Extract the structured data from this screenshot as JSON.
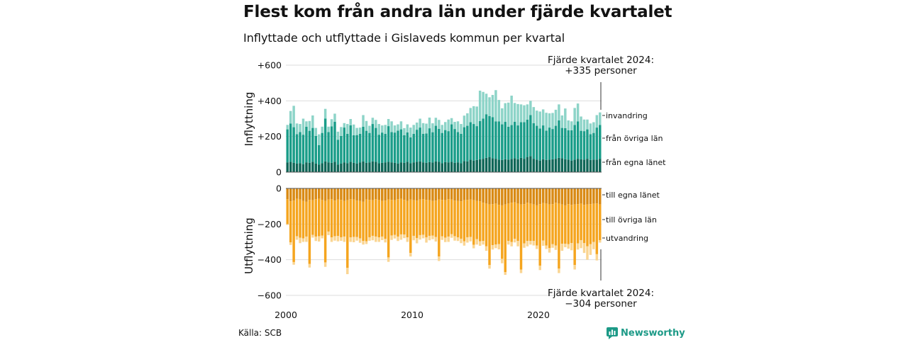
{
  "title": "Flest kom från andra län under fjärde kvartalet",
  "subtitle": "Inflyttade och utflyttade i Gislaveds kommun per kvartal",
  "source": "Källa: SCB",
  "brand": "Newsworthy",
  "colors": {
    "in_own": "#0e6657",
    "in_other": "#1a9d89",
    "in_immigration": "#8dd4c8",
    "out_own": "#d98a14",
    "out_other": "#f5a51f",
    "out_emigration": "#fad592",
    "grid": "#dddddd",
    "brand": "#1d9a87"
  },
  "chart_data": {
    "type": "bar",
    "stacked": true,
    "x_start": "2000 Q1",
    "x_end": "2024 Q4",
    "x_ticks": [
      "2000",
      "2010",
      "2020"
    ],
    "panels": [
      {
        "id": "inflyttning",
        "ylabel": "Inflyttning",
        "ylim": [
          0,
          600
        ],
        "yticks": [
          0,
          200,
          400,
          600
        ],
        "ytick_labels": [
          "0",
          "+200",
          "+400",
          "+600"
        ],
        "annotation": [
          "Fjärde kvartalet 2024:",
          "+335 personer"
        ],
        "series": [
          {
            "name": "från egna länet",
            "values": [
              55,
              58,
              52,
              48,
              50,
              45,
              55,
              52,
              58,
              48,
              42,
              50,
              60,
              55,
              52,
              58,
              42,
              48,
              55,
              50,
              58,
              52,
              48,
              55,
              60,
              52,
              55,
              60,
              58,
              50,
              52,
              55,
              58,
              55,
              52,
              48,
              55,
              52,
              58,
              50,
              55,
              58,
              60,
              55,
              52,
              56,
              54,
              60,
              58,
              50,
              56,
              55,
              58,
              52,
              55,
              50,
              62,
              60,
              70,
              65,
              68,
              72,
              75,
              80,
              85,
              78,
              75,
              70,
              68,
              72,
              70,
              74,
              78,
              72,
              80,
              75,
              85,
              90,
              75,
              70,
              65,
              72,
              68,
              70,
              72,
              75,
              80,
              78,
              72,
              70,
              65,
              70,
              75,
              72,
              70,
              75,
              68,
              70,
              70,
              75
            ]
          },
          {
            "name": "från övriga län",
            "values": [
              185,
              215,
              200,
              165,
              175,
              165,
              200,
              180,
              190,
              155,
              110,
              170,
              240,
              170,
              205,
              225,
              140,
              155,
              195,
              165,
              205,
              155,
              160,
              160,
              195,
              180,
              165,
              210,
              190,
              160,
              170,
              160,
              200,
              170,
              170,
              185,
              185,
              155,
              165,
              145,
              160,
              180,
              190,
              160,
              165,
              190,
              170,
              200,
              185,
              170,
              180,
              175,
              210,
              190,
              170,
              165,
              190,
              200,
              210,
              205,
              190,
              215,
              225,
              245,
              230,
              230,
              210,
              215,
              200,
              210,
              185,
              190,
              205,
              190,
              200,
              205,
              210,
              230,
              200,
              190,
              180,
              190,
              165,
              180,
              170,
              185,
              210,
              170,
              175,
              165,
              170,
              195,
              210,
              160,
              160,
              165,
              145,
              150,
              180,
              190
            ]
          },
          {
            "name": "invandring",
            "values": [
              25,
              70,
              120,
              60,
              45,
              90,
              30,
              55,
              70,
              45,
              60,
              35,
              55,
              30,
              40,
              45,
              45,
              50,
              25,
              55,
              35,
              60,
              40,
              35,
              65,
              55,
              40,
              35,
              45,
              60,
              40,
              50,
              40,
              60,
              40,
              35,
              45,
              40,
              45,
              55,
              50,
              40,
              50,
              60,
              55,
              60,
              50,
              45,
              50,
              45,
              45,
              65,
              35,
              40,
              60,
              55,
              65,
              70,
              80,
              100,
              110,
              170,
              150,
              115,
              105,
              125,
              175,
              120,
              90,
              105,
              135,
              165,
              105,
              120,
              100,
              95,
              85,
              80,
              90,
              85,
              95,
              90,
              100,
              80,
              90,
              90,
              90,
              70,
              110,
              55,
              50,
              95,
              100,
              80,
              65,
              55,
              60,
              60,
              70,
              70
            ]
          }
        ],
        "series_labels": [
          "invandring",
          "från övriga län",
          "från egna länet"
        ]
      },
      {
        "id": "utflyttning",
        "ylabel": "Utflyttning",
        "ylim": [
          -600,
          0
        ],
        "yticks": [
          0,
          -200,
          -400,
          -600
        ],
        "ytick_labels": [
          "0",
          "−200",
          "−400",
          "−600"
        ],
        "annotation": [
          "Fjärde kvartalet 2024:",
          "−304 personer"
        ],
        "series": [
          {
            "name": "till egna länet",
            "values": [
              -60,
              -72,
              -68,
              -58,
              -62,
              -70,
              -75,
              -64,
              -66,
              -60,
              -58,
              -65,
              -70,
              -62,
              -60,
              -68,
              -62,
              -64,
              -70,
              -66,
              -60,
              -62,
              -68,
              -70,
              -75,
              -62,
              -64,
              -66,
              -60,
              -65,
              -70,
              -68,
              -62,
              -64,
              -66,
              -60,
              -58,
              -64,
              -70,
              -62,
              -66,
              -68,
              -62,
              -60,
              -64,
              -66,
              -70,
              -68,
              -62,
              -64,
              -66,
              -60,
              -62,
              -68,
              -70,
              -72,
              -66,
              -64,
              -62,
              -66,
              -70,
              -72,
              -80,
              -85,
              -90,
              -88,
              -85,
              -92,
              -95,
              -90,
              -85,
              -80,
              -78,
              -85,
              -90,
              -88,
              -80,
              -85,
              -90,
              -95,
              -88,
              -82,
              -85,
              -90,
              -88,
              -80,
              -85,
              -90,
              -95,
              -88,
              -92,
              -90,
              -88,
              -85,
              -92,
              -90,
              -88,
              -86,
              -84,
              -90
            ]
          },
          {
            "name": "till övriga län",
            "values": [
              -140,
              -230,
              -345,
              -210,
              -215,
              -210,
              -195,
              -360,
              -195,
              -210,
              -210,
              -200,
              -345,
              -180,
              -215,
              -200,
              -205,
              -210,
              -200,
              -380,
              -215,
              -210,
              -205,
              -210,
              -220,
              -235,
              -210,
              -200,
              -210,
              -210,
              -200,
              -215,
              -325,
              -200,
              -195,
              -210,
              -200,
              -195,
              -205,
              -300,
              -200,
              -210,
              -200,
              -200,
              -210,
              -200,
              -195,
              -205,
              -320,
              -205,
              -210,
              -210,
              -195,
              -200,
              -205,
              -210,
              -230,
              -210,
              -210,
              -250,
              -215,
              -225,
              -215,
              -240,
              -340,
              -230,
              -230,
              -220,
              -300,
              -380,
              -210,
              -220,
              -205,
              -210,
              -365,
              -220,
              -215,
              -210,
              -205,
              -225,
              -345,
              -210,
              -235,
              -245,
              -225,
              -240,
              -365,
              -220,
              -215,
              -225,
              -215,
              -340,
              -220,
              -205,
              -215,
              -235,
              -225,
              -215,
              -285,
              -200
            ]
          },
          {
            "name": "utvandring",
            "values": [
              -5,
              -15,
              -15,
              -20,
              -30,
              -20,
              -30,
              -20,
              -15,
              -25,
              -30,
              -15,
              -25,
              -20,
              -25,
              -25,
              -30,
              -20,
              -30,
              -35,
              -25,
              -30,
              -20,
              -25,
              -20,
              -15,
              -20,
              -25,
              -30,
              -25,
              -20,
              -20,
              -25,
              -25,
              -20,
              -25,
              -30,
              -20,
              -25,
              -20,
              -25,
              -30,
              -25,
              -20,
              -30,
              -25,
              -20,
              -25,
              -25,
              -20,
              -25,
              -30,
              -20,
              -25,
              -20,
              -25,
              -25,
              -30,
              -25,
              -20,
              -30,
              -25,
              -20,
              -25,
              -20,
              -25,
              -20,
              -30,
              -25,
              -15,
              -20,
              -25,
              -20,
              -30,
              -20,
              -25,
              -30,
              -20,
              -25,
              -20,
              -25,
              -30,
              -20,
              -25,
              -20,
              -25,
              -25,
              -40,
              -20,
              -25,
              -40,
              -25,
              -35,
              -45,
              -55,
              -75,
              -60,
              -40,
              -35,
              -14
            ]
          }
        ],
        "series_labels": [
          "till egna länet",
          "till övriga län",
          "utvandring"
        ]
      }
    ]
  }
}
